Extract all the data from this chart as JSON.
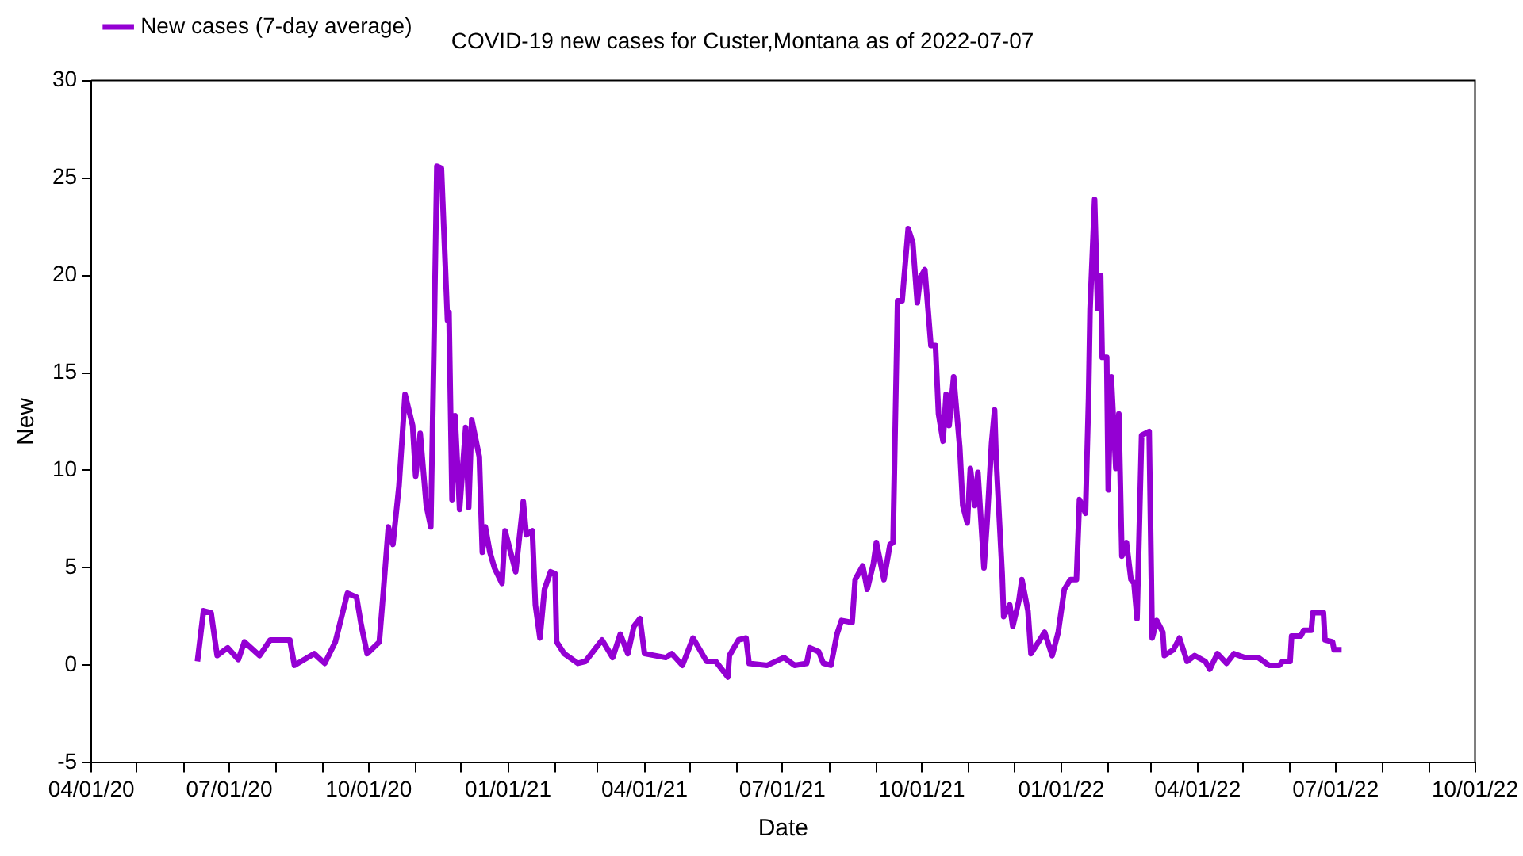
{
  "chart_data": {
    "type": "line",
    "title": "COVID-19 new cases for Custer,Montana as of 2022-07-07",
    "xlabel": "Date",
    "ylabel": "New",
    "xlim": [
      "2020-04-01",
      "2022-10-01"
    ],
    "xticks": [
      {
        "value": "2020-04-01",
        "label": "04/01/20"
      },
      {
        "value": "2020-05-01",
        "label": null
      },
      {
        "value": "2020-06-01",
        "label": null
      },
      {
        "value": "2020-07-01",
        "label": "07/01/20"
      },
      {
        "value": "2020-08-01",
        "label": null
      },
      {
        "value": "2020-09-01",
        "label": null
      },
      {
        "value": "2020-10-01",
        "label": "10/01/20"
      },
      {
        "value": "2020-11-01",
        "label": null
      },
      {
        "value": "2020-12-01",
        "label": null
      },
      {
        "value": "2021-01-01",
        "label": "01/01/21"
      },
      {
        "value": "2021-02-01",
        "label": null
      },
      {
        "value": "2021-03-01",
        "label": null
      },
      {
        "value": "2021-04-01",
        "label": "04/01/21"
      },
      {
        "value": "2021-05-01",
        "label": null
      },
      {
        "value": "2021-06-01",
        "label": null
      },
      {
        "value": "2021-07-01",
        "label": "07/01/21"
      },
      {
        "value": "2021-08-01",
        "label": null
      },
      {
        "value": "2021-09-01",
        "label": null
      },
      {
        "value": "2021-10-01",
        "label": "10/01/21"
      },
      {
        "value": "2021-11-01",
        "label": null
      },
      {
        "value": "2021-12-01",
        "label": null
      },
      {
        "value": "2022-01-01",
        "label": "01/01/22"
      },
      {
        "value": "2022-02-01",
        "label": null
      },
      {
        "value": "2022-03-01",
        "label": null
      },
      {
        "value": "2022-04-01",
        "label": "04/01/22"
      },
      {
        "value": "2022-05-01",
        "label": null
      },
      {
        "value": "2022-06-01",
        "label": null
      },
      {
        "value": "2022-07-01",
        "label": "07/01/22"
      },
      {
        "value": "2022-08-01",
        "label": null
      },
      {
        "value": "2022-09-01",
        "label": null
      },
      {
        "value": "2022-10-01",
        "label": "10/01/22"
      }
    ],
    "ylim": [
      -5,
      30
    ],
    "yticks": [
      -5,
      0,
      5,
      10,
      15,
      20,
      25,
      30
    ],
    "grid": false,
    "legend": "top left",
    "series": [
      {
        "name": "New cases (7-day average)",
        "color": "#9400d3",
        "x": [
          "2020-06-10",
          "2020-06-14",
          "2020-06-19",
          "2020-06-23",
          "2020-06-30",
          "2020-07-07",
          "2020-07-11",
          "2020-07-21",
          "2020-07-28",
          "2020-08-10",
          "2020-08-13",
          "2020-08-26",
          "2020-09-02",
          "2020-09-09",
          "2020-09-17",
          "2020-09-23",
          "2020-09-26",
          "2020-09-30",
          "2020-10-08",
          "2020-10-10",
          "2020-10-14",
          "2020-10-17",
          "2020-10-21",
          "2020-10-25",
          "2020-10-30",
          "2020-11-01",
          "2020-11-04",
          "2020-11-08",
          "2020-11-11",
          "2020-11-13",
          "2020-11-15",
          "2020-11-18",
          "2020-11-22",
          "2020-11-23",
          "2020-11-25",
          "2020-11-27",
          "2020-11-30",
          "2020-12-04",
          "2020-12-06",
          "2020-12-08",
          "2020-12-13",
          "2020-12-15",
          "2020-12-17",
          "2020-12-20",
          "2020-12-23",
          "2020-12-28",
          "2020-12-30",
          "2021-01-06",
          "2021-01-11",
          "2021-01-13",
          "2021-01-17",
          "2021-01-19",
          "2021-01-22",
          "2021-01-25",
          "2021-01-29",
          "2021-02-01",
          "2021-02-02",
          "2021-02-07",
          "2021-02-16",
          "2021-02-21",
          "2021-03-04",
          "2021-03-11",
          "2021-03-16",
          "2021-03-21",
          "2021-03-25",
          "2021-03-29",
          "2021-04-01",
          "2021-04-15",
          "2021-04-19",
          "2021-04-26",
          "2021-05-03",
          "2021-05-12",
          "2021-05-18",
          "2021-05-26",
          "2021-05-27",
          "2021-06-02",
          "2021-06-07",
          "2021-06-09",
          "2021-06-21",
          "2021-07-02",
          "2021-07-09",
          "2021-07-17",
          "2021-07-19",
          "2021-07-25",
          "2021-07-28",
          "2021-08-02",
          "2021-08-06",
          "2021-08-09",
          "2021-08-16",
          "2021-08-18",
          "2021-08-23",
          "2021-08-26",
          "2021-08-30",
          "2021-09-01",
          "2021-09-06",
          "2021-09-10",
          "2021-09-12",
          "2021-09-15",
          "2021-09-18",
          "2021-09-22",
          "2021-09-25",
          "2021-09-28",
          "2021-09-30",
          "2021-10-03",
          "2021-10-07",
          "2021-10-10",
          "2021-10-12",
          "2021-10-15",
          "2021-10-17",
          "2021-10-19",
          "2021-10-22",
          "2021-10-26",
          "2021-10-28",
          "2021-10-31",
          "2021-11-02",
          "2021-11-05",
          "2021-11-07",
          "2021-11-11",
          "2021-11-13",
          "2021-11-16",
          "2021-11-18",
          "2021-11-19",
          "2021-11-23",
          "2021-11-24",
          "2021-11-28",
          "2021-11-30",
          "2021-12-04",
          "2021-12-06",
          "2021-12-10",
          "2021-12-12",
          "2021-12-17",
          "2021-12-21",
          "2021-12-26",
          "2021-12-30",
          "2022-01-03",
          "2022-01-07",
          "2022-01-11",
          "2022-01-13",
          "2022-01-17",
          "2022-01-19",
          "2022-01-20",
          "2022-01-23",
          "2022-01-25",
          "2022-01-27",
          "2022-01-28",
          "2022-01-31",
          "2022-02-01",
          "2022-02-03",
          "2022-02-06",
          "2022-02-08",
          "2022-02-10",
          "2022-02-13",
          "2022-02-16",
          "2022-02-18",
          "2022-02-20",
          "2022-02-23",
          "2022-02-28",
          "2022-03-02",
          "2022-03-05",
          "2022-03-09",
          "2022-03-10",
          "2022-03-16",
          "2022-03-20",
          "2022-03-25",
          "2022-03-30",
          "2022-04-06",
          "2022-04-09",
          "2022-04-14",
          "2022-04-20",
          "2022-04-25",
          "2022-05-02",
          "2022-05-11",
          "2022-05-18",
          "2022-05-25",
          "2022-05-27",
          "2022-06-01",
          "2022-06-02",
          "2022-06-08",
          "2022-06-10",
          "2022-06-15",
          "2022-06-16",
          "2022-06-23",
          "2022-06-24",
          "2022-06-29",
          "2022-06-30",
          "2022-07-05"
        ],
        "values": [
          0.2,
          2.8,
          2.7,
          0.5,
          0.9,
          0.3,
          1.2,
          0.5,
          1.3,
          1.3,
          0,
          0.6,
          0.1,
          1.2,
          3.7,
          3.5,
          2.1,
          0.6,
          1.2,
          3.1,
          7.1,
          6.2,
          9.2,
          13.9,
          12.3,
          9.7,
          11.9,
          8.2,
          7.1,
          16.0,
          25.6,
          25.5,
          17.7,
          18.1,
          8.5,
          12.8,
          8.0,
          12.2,
          8.1,
          12.6,
          10.7,
          5.8,
          7.1,
          5.8,
          5.0,
          4.2,
          6.9,
          4.8,
          8.4,
          6.7,
          6.9,
          3.1,
          1.4,
          3.9,
          4.8,
          4.7,
          1.2,
          0.6,
          0.1,
          0.2,
          1.3,
          0.4,
          1.6,
          0.6,
          2.0,
          2.4,
          0.6,
          0.4,
          0.6,
          0,
          1.4,
          0.2,
          0.2,
          -0.6,
          0.5,
          1.3,
          1.4,
          0.1,
          0,
          0.4,
          0,
          0.1,
          0.9,
          0.7,
          0.1,
          0,
          1.6,
          2.3,
          2.2,
          4.4,
          5.1,
          3.9,
          5.2,
          6.3,
          4.4,
          6.2,
          6.3,
          18.7,
          18.7,
          22.4,
          21.7,
          18.6,
          19.9,
          20.3,
          16.4,
          16.4,
          12.9,
          11.5,
          13.9,
          12.3,
          14.8,
          11.2,
          8.2,
          7.3,
          10.1,
          8.2,
          9.9,
          5.0,
          7.3,
          11.4,
          13.1,
          10.7,
          4.7,
          2.5,
          3.1,
          2.0,
          3.3,
          4.4,
          2.8,
          0.6,
          1.2,
          1.7,
          0.5,
          1.7,
          3.9,
          4.4,
          4.4,
          8.5,
          7.8,
          13.7,
          18.3,
          23.9,
          18.3,
          20.0,
          15.8,
          15.8,
          9.0,
          14.8,
          10.1,
          12.9,
          5.6,
          6.3,
          4.4,
          4.2,
          2.4,
          11.8,
          12.0,
          1.4,
          2.3,
          1.7,
          0.5,
          0.8,
          1.4,
          0.2,
          0.5,
          0.2,
          -0.2,
          0.6,
          0.1,
          0.6,
          0.4,
          0.4,
          0,
          0,
          0.2,
          0.2,
          1.5,
          1.5,
          1.8,
          1.8,
          2.7,
          2.7,
          1.3,
          1.2,
          0.8,
          0.8
        ]
      }
    ]
  }
}
